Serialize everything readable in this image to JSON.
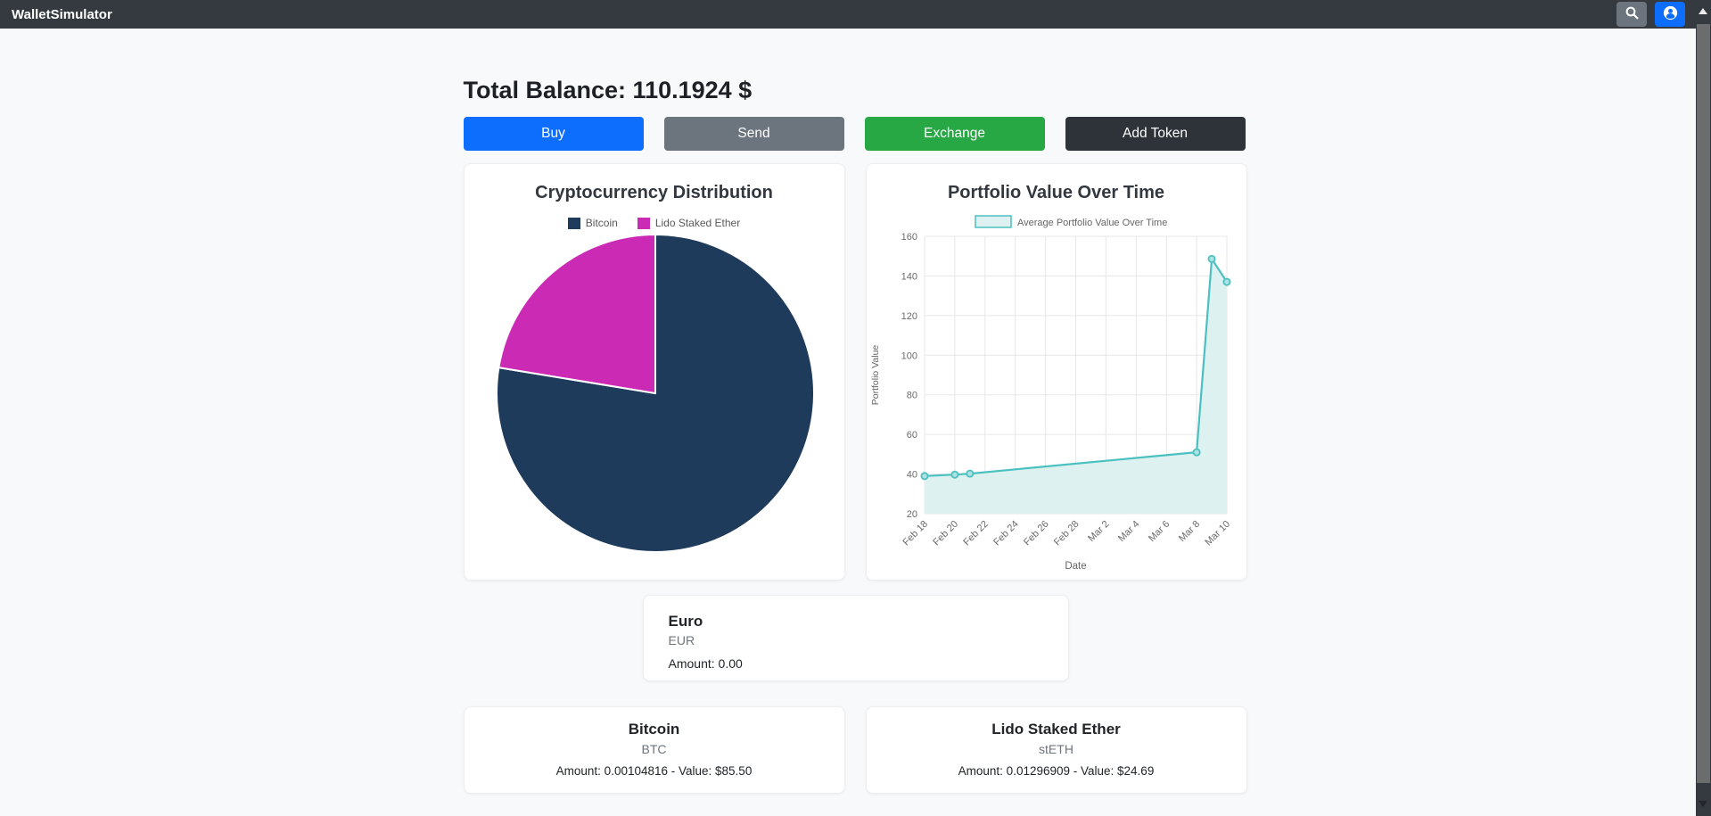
{
  "navbar": {
    "brand": "WalletSimulator",
    "search_icon": "magnifier-icon",
    "profile_icon": "person-circle-icon"
  },
  "header": {
    "total_balance": "Total Balance: 110.1924 $"
  },
  "actions": {
    "buy": "Buy",
    "send": "Send",
    "exchange": "Exchange",
    "add_token": "Add Token"
  },
  "colors": {
    "navbar_bg": "#343a40",
    "page_bg": "#f8f9fa",
    "buy_btn": "#0d6efd",
    "send_btn": "#6c757d",
    "exchange_btn": "#28a745",
    "add_token_btn": "#2e333a",
    "pie_bitcoin": "#1f3b5c",
    "pie_steth": "#cb2bb4",
    "line_teal": "#4bc0c0"
  },
  "chart_data": [
    {
      "type": "pie",
      "title": "Cryptocurrency Distribution",
      "labels": [
        "Bitcoin",
        "Lido Staked Ether"
      ],
      "values": [
        85.5,
        24.69
      ],
      "colors": [
        "#1f3b5c",
        "#cb2bb4"
      ],
      "legend_position": "top"
    },
    {
      "type": "line",
      "title": "Portfolio Value Over Time",
      "legend_label": "Average Portfolio Value Over Time",
      "xlabel": "Date",
      "ylabel": "Portfolio Value",
      "x_tick_labels": [
        "Feb 18",
        "Feb 20",
        "Feb 22",
        "Feb 24",
        "Feb 26",
        "Feb 28",
        "Mar 2",
        "Mar 4",
        "Mar 6",
        "Mar 8",
        "Mar 10"
      ],
      "x_tick_days": [
        0,
        2,
        4,
        6,
        8,
        10,
        12,
        14,
        16,
        18,
        20
      ],
      "y_ticks": [
        20,
        40,
        60,
        80,
        100,
        120,
        140,
        160
      ],
      "ylim": [
        20,
        160
      ],
      "grid": true,
      "line_color": "#4bc0c0",
      "fill_color": "#def1f1",
      "point_fill": "#aee2e2",
      "series": [
        {
          "name": "Average Portfolio Value Over Time",
          "points": [
            {
              "date": "Feb 18",
              "day": 0,
              "value": 39
            },
            {
              "date": "Feb 20",
              "day": 2,
              "value": 39.7
            },
            {
              "date": "Feb 21",
              "day": 3,
              "value": 40.2
            },
            {
              "date": "Mar 8",
              "day": 18,
              "value": 51
            },
            {
              "date": "Mar 9",
              "day": 19,
              "value": 148.6
            },
            {
              "date": "Mar 10",
              "day": 20,
              "value": 137
            }
          ]
        }
      ]
    }
  ],
  "euro_card": {
    "name": "Euro",
    "symbol": "EUR",
    "amount_line": "Amount: 0.00"
  },
  "token_cards": [
    {
      "name": "Bitcoin",
      "symbol": "BTC",
      "detail": "Amount: 0.00104816 - Value: $85.50"
    },
    {
      "name": "Lido Staked Ether",
      "symbol": "stETH",
      "detail": "Amount: 0.01296909 - Value: $24.69"
    }
  ]
}
